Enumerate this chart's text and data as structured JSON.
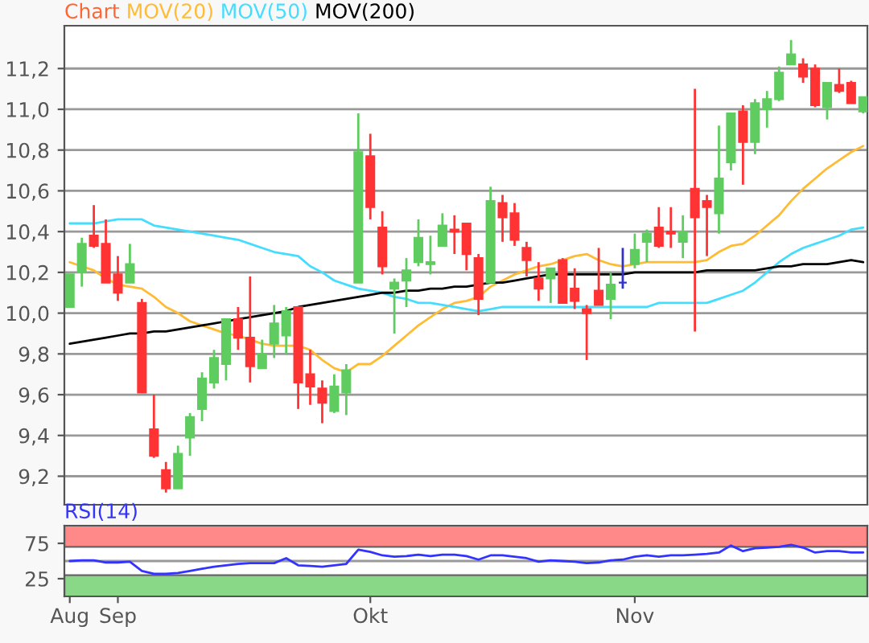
{
  "chart_data": [
    {
      "type": "candlestick",
      "title": "Chart",
      "categories": [
        null,
        null,
        null,
        null,
        null,
        null,
        null,
        null,
        null,
        null,
        null,
        null,
        null,
        null,
        null,
        null,
        null,
        null,
        null,
        null,
        null,
        null,
        null,
        null,
        null,
        null,
        null,
        null,
        null,
        null,
        null,
        null,
        null,
        null,
        null,
        null,
        null,
        null,
        null,
        null,
        null,
        null,
        null,
        null,
        null,
        null,
        null,
        null,
        null,
        null,
        null,
        null,
        null,
        null,
        null,
        null,
        null,
        null,
        null,
        null,
        null,
        null,
        null,
        null,
        null,
        null,
        null
      ],
      "ohlc": [
        [
          10.03,
          10.19,
          10.03,
          10.19
        ],
        [
          10.2,
          10.37,
          10.13,
          10.34
        ],
        [
          10.38,
          10.53,
          10.32,
          10.33
        ],
        [
          10.34,
          10.46,
          10.15,
          10.15
        ],
        [
          10.19,
          10.28,
          10.06,
          10.1
        ],
        [
          10.15,
          10.34,
          10.15,
          10.24
        ],
        [
          10.05,
          10.07,
          9.61,
          9.61
        ],
        [
          9.43,
          9.6,
          9.29,
          9.3
        ],
        [
          9.23,
          9.27,
          9.12,
          9.14
        ],
        [
          9.14,
          9.35,
          9.14,
          9.31
        ],
        [
          9.39,
          9.51,
          9.3,
          9.49
        ],
        [
          9.53,
          9.71,
          9.47,
          9.68
        ],
        [
          9.66,
          9.82,
          9.63,
          9.78
        ],
        [
          9.75,
          9.97,
          9.67,
          9.97
        ],
        [
          9.97,
          10.03,
          9.82,
          9.88
        ],
        [
          9.88,
          10.18,
          9.66,
          9.74
        ],
        [
          9.73,
          9.87,
          9.73,
          9.8
        ],
        [
          9.85,
          10.04,
          9.78,
          9.95
        ],
        [
          9.89,
          10.03,
          9.8,
          10.01
        ],
        [
          10.03,
          10.03,
          9.53,
          9.66
        ],
        [
          9.7,
          9.82,
          9.55,
          9.64
        ],
        [
          9.63,
          9.67,
          9.46,
          9.56
        ],
        [
          9.52,
          9.7,
          9.51,
          9.64
        ],
        [
          9.61,
          9.75,
          9.5,
          9.72
        ],
        [
          10.15,
          10.98,
          10.15,
          10.79
        ],
        [
          10.77,
          10.88,
          10.46,
          10.52
        ],
        [
          10.42,
          10.5,
          10.19,
          10.23
        ],
        [
          10.12,
          10.17,
          9.9,
          10.15
        ],
        [
          10.16,
          10.27,
          10.03,
          10.21
        ],
        [
          10.25,
          10.46,
          10.23,
          10.37
        ],
        [
          10.24,
          10.38,
          10.19,
          10.25
        ],
        [
          10.33,
          10.49,
          10.33,
          10.43
        ],
        [
          10.41,
          10.48,
          10.29,
          10.4
        ],
        [
          10.44,
          10.44,
          10.21,
          10.29
        ],
        [
          10.27,
          10.29,
          9.99,
          10.07
        ],
        [
          10.15,
          10.62,
          10.15,
          10.55
        ],
        [
          10.54,
          10.58,
          10.35,
          10.47
        ],
        [
          10.49,
          10.54,
          10.33,
          10.36
        ],
        [
          10.32,
          10.35,
          10.18,
          10.26
        ],
        [
          10.17,
          10.25,
          10.06,
          10.12
        ],
        [
          10.17,
          10.22,
          10.05,
          10.22
        ],
        [
          10.26,
          10.27,
          10.05,
          10.05
        ],
        [
          10.12,
          10.22,
          10.02,
          10.06
        ],
        [
          10.02,
          10.04,
          9.77,
          10.0
        ],
        [
          10.11,
          10.32,
          10.04,
          10.04
        ],
        [
          10.07,
          10.2,
          9.97,
          10.14
        ],
        [
          10.15,
          10.32,
          10.12,
          10.15
        ],
        [
          10.24,
          10.39,
          10.22,
          10.31
        ],
        [
          10.35,
          10.41,
          10.25,
          10.39
        ],
        [
          10.42,
          10.52,
          10.32,
          10.33
        ],
        [
          10.4,
          10.52,
          10.32,
          10.39
        ],
        [
          10.35,
          10.48,
          10.27,
          10.4
        ],
        [
          10.61,
          11.1,
          9.91,
          10.47
        ],
        [
          10.55,
          10.58,
          10.28,
          10.52
        ],
        [
          10.49,
          10.92,
          10.39,
          10.66
        ],
        [
          10.74,
          10.98,
          10.7,
          10.98
        ],
        [
          10.99,
          11.02,
          10.63,
          10.84
        ],
        [
          10.84,
          11.05,
          10.78,
          11.03
        ],
        [
          11.0,
          11.09,
          10.91,
          11.05
        ],
        [
          11.05,
          11.21,
          11.04,
          11.18
        ],
        [
          11.22,
          11.34,
          11.22,
          11.27
        ],
        [
          11.22,
          11.25,
          11.13,
          11.16
        ],
        [
          11.2,
          11.22,
          11.01,
          11.02
        ],
        [
          11.01,
          11.13,
          10.95,
          11.13
        ],
        [
          11.12,
          11.2,
          11.08,
          11.09
        ],
        [
          11.13,
          11.14,
          11.03,
          11.03
        ],
        [
          10.99,
          11.06,
          10.98,
          11.06
        ]
      ],
      "colors": [
        "#5fcc5f",
        "#5fcc5f",
        "#ff3333",
        "#ff3333",
        "#ff3333",
        "#5fcc5f",
        "#ff3333",
        "#ff3333",
        "#ff3333",
        "#5fcc5f",
        "#5fcc5f",
        "#5fcc5f",
        "#5fcc5f",
        "#5fcc5f",
        "#ff3333",
        "#ff3333",
        "#5fcc5f",
        "#5fcc5f",
        "#5fcc5f",
        "#ff3333",
        "#ff3333",
        "#ff3333",
        "#5fcc5f",
        "#5fcc5f",
        "#5fcc5f",
        "#ff3333",
        "#ff3333",
        "#5fcc5f",
        "#5fcc5f",
        "#5fcc5f",
        "#5fcc5f",
        "#5fcc5f",
        "#ff3333",
        "#ff3333",
        "#ff3333",
        "#5fcc5f",
        "#ff3333",
        "#ff3333",
        "#ff3333",
        "#ff3333",
        "#5fcc5f",
        "#ff3333",
        "#ff3333",
        "#ff3333",
        "#ff3333",
        "#5fcc5f",
        "#3333cc",
        "#5fcc5f",
        "#5fcc5f",
        "#ff3333",
        "#ff3333",
        "#5fcc5f",
        "#ff3333",
        "#ff3333",
        "#5fcc5f",
        "#5fcc5f",
        "#ff3333",
        "#5fcc5f",
        "#5fcc5f",
        "#5fcc5f",
        "#5fcc5f",
        "#ff3333",
        "#ff3333",
        "#5fcc5f",
        "#ff3333",
        "#ff3333",
        "#5fcc5f"
      ],
      "series": [
        {
          "name": "MOV(20)",
          "type": "line",
          "color": "#ffbb33",
          "values": [
            10.25,
            10.23,
            10.21,
            10.17,
            10.14,
            10.13,
            10.12,
            10.08,
            10.03,
            10.0,
            9.96,
            9.94,
            9.92,
            9.9,
            9.89,
            9.87,
            9.85,
            9.84,
            9.84,
            9.84,
            9.82,
            9.77,
            9.73,
            9.71,
            9.75,
            9.75,
            9.79,
            9.84,
            9.89,
            9.94,
            9.98,
            10.02,
            10.05,
            10.06,
            10.08,
            10.13,
            10.16,
            10.19,
            10.21,
            10.23,
            10.24,
            10.26,
            10.28,
            10.29,
            10.26,
            10.24,
            10.23,
            10.24,
            10.25,
            10.25,
            10.25,
            10.25,
            10.25,
            10.26,
            10.3,
            10.33,
            10.34,
            10.38,
            10.43,
            10.48,
            10.55,
            10.61,
            10.66,
            10.71,
            10.75,
            10.79,
            10.82
          ]
        },
        {
          "name": "MOV(50)",
          "type": "line",
          "color": "#44ddff",
          "values": [
            10.44,
            10.44,
            10.44,
            10.45,
            10.46,
            10.46,
            10.46,
            10.43,
            10.42,
            10.41,
            10.4,
            10.39,
            10.38,
            10.37,
            10.36,
            10.34,
            10.32,
            10.3,
            10.29,
            10.28,
            10.23,
            10.2,
            10.16,
            10.14,
            10.12,
            10.11,
            10.1,
            10.08,
            10.07,
            10.05,
            10.05,
            10.04,
            10.03,
            10.02,
            10.01,
            10.02,
            10.03,
            10.03,
            10.03,
            10.03,
            10.03,
            10.03,
            10.03,
            10.03,
            10.03,
            10.03,
            10.03,
            10.03,
            10.03,
            10.05,
            10.05,
            10.05,
            10.05,
            10.05,
            10.07,
            10.09,
            10.11,
            10.15,
            10.2,
            10.25,
            10.29,
            10.32,
            10.34,
            10.36,
            10.38,
            10.41,
            10.42
          ]
        },
        {
          "name": "MOV(200)",
          "type": "line",
          "color": "#000000",
          "values": [
            9.85,
            9.86,
            9.87,
            9.88,
            9.89,
            9.9,
            9.9,
            9.91,
            9.91,
            9.92,
            9.93,
            9.94,
            9.95,
            9.96,
            9.97,
            9.98,
            9.99,
            10.0,
            10.01,
            10.03,
            10.04,
            10.05,
            10.06,
            10.07,
            10.08,
            10.09,
            10.1,
            10.1,
            10.11,
            10.11,
            10.12,
            10.12,
            10.13,
            10.13,
            10.14,
            10.15,
            10.15,
            10.16,
            10.17,
            10.18,
            10.19,
            10.19,
            10.19,
            10.19,
            10.19,
            10.19,
            10.19,
            10.2,
            10.2,
            10.2,
            10.2,
            10.2,
            10.2,
            10.21,
            10.21,
            10.21,
            10.21,
            10.21,
            10.22,
            10.23,
            10.23,
            10.24,
            10.24,
            10.24,
            10.25,
            10.26,
            10.25
          ]
        }
      ],
      "ylim": [
        9.06,
        11.41
      ],
      "yticks": [
        {
          "value": 9.2,
          "label": "9,2"
        },
        {
          "value": 9.4,
          "label": "9,4"
        },
        {
          "value": 9.6,
          "label": "9,6"
        },
        {
          "value": 9.8,
          "label": "9,8"
        },
        {
          "value": 10.0,
          "label": "10,0"
        },
        {
          "value": 10.2,
          "label": "10,2"
        },
        {
          "value": 10.4,
          "label": "10,4"
        },
        {
          "value": 10.6,
          "label": "10,6"
        },
        {
          "value": 10.8,
          "label": "10,8"
        },
        {
          "value": 11.0,
          "label": "11,0"
        },
        {
          "value": 11.2,
          "label": "11,2"
        }
      ],
      "grid": "y",
      "legend": "top left",
      "tick_labels": "y"
    },
    {
      "type": "line",
      "categories": [
        "Aug",
        null,
        null,
        null,
        "Sep",
        null,
        null,
        null,
        null,
        null,
        null,
        null,
        null,
        null,
        null,
        null,
        null,
        null,
        null,
        null,
        null,
        null,
        null,
        null,
        null,
        "Okt",
        null,
        null,
        null,
        null,
        null,
        null,
        null,
        null,
        null,
        null,
        null,
        null,
        null,
        null,
        null,
        null,
        null,
        null,
        null,
        null,
        null,
        "Nov",
        null,
        null,
        null,
        null,
        null,
        null,
        null,
        null,
        null,
        null,
        null,
        null,
        null,
        null,
        null,
        null,
        null,
        null,
        null
      ],
      "series": [
        {
          "name": "RSI(14)",
          "color": "#3333ff",
          "values": [
            50,
            51,
            51,
            48,
            48,
            49,
            36,
            32,
            32,
            33,
            36,
            39,
            42,
            44,
            46,
            47,
            47,
            47,
            54,
            44,
            43,
            42,
            44,
            46,
            66,
            63,
            58,
            56,
            57,
            59,
            57,
            59,
            59,
            57,
            52,
            58,
            58,
            56,
            54,
            49,
            51,
            50,
            49,
            47,
            48,
            51,
            52,
            56,
            58,
            56,
            58,
            58,
            59,
            60,
            62,
            72,
            64,
            68,
            69,
            70,
            73,
            69,
            62,
            64,
            64,
            62,
            62
          ]
        }
      ],
      "ylim": [
        0,
        100
      ],
      "yticks": [
        25,
        75
      ],
      "bands": [
        {
          "axis": "y",
          "from": 70,
          "to": 100,
          "color": "#ff8888"
        },
        {
          "axis": "y",
          "from": 0,
          "to": 30,
          "color": "#88d888"
        }
      ],
      "ref_lines": [
        {
          "axis": "y",
          "value": 50,
          "color": "#999999"
        }
      ],
      "grid": false,
      "legend": "top left"
    }
  ]
}
